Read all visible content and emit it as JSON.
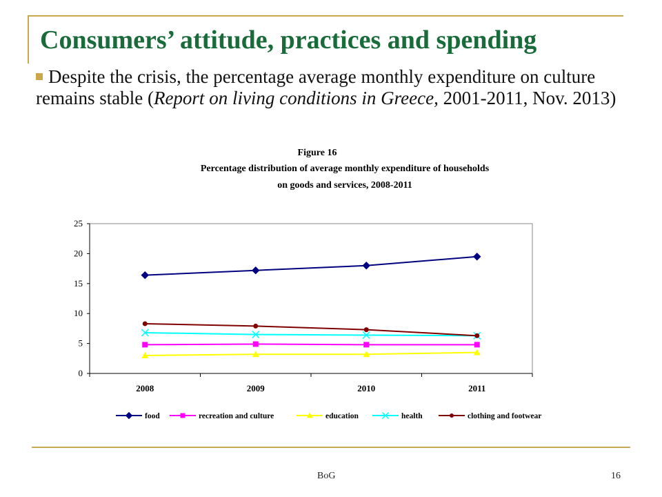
{
  "slide": {
    "title": "Consumers’ attitude, practices and  spending",
    "bullet_main": "Despite the crisis, the percentage average monthly expenditure on culture remains stable (",
    "bullet_italic": "Report on living conditions in Greece,",
    "bullet_tail": " 2001-2011, Nov. 2013)",
    "footer_center": "BoG",
    "page_number": "16"
  },
  "colors": {
    "accent": "#c8a84a",
    "title": "#1a6b3a"
  },
  "chart_data": {
    "type": "line",
    "title": "Figure 16",
    "subtitle_line1": "Percentage distribution of average monthly expenditure of households",
    "subtitle_line2": "on goods and services, 2008-2011",
    "xlabel": "",
    "ylabel": "",
    "categories": [
      "2008",
      "2009",
      "2010",
      "2011"
    ],
    "ylim": [
      0,
      25
    ],
    "yticks": [
      0,
      5,
      10,
      15,
      20,
      25
    ],
    "grid": false,
    "legend": "bottom",
    "series": [
      {
        "name": "food",
        "values": [
          16.4,
          17.2,
          18.0,
          19.5
        ],
        "color": "#000080",
        "marker": "diamond"
      },
      {
        "name": "recreation and culture",
        "values": [
          4.8,
          4.9,
          4.8,
          4.8
        ],
        "color": "#ff00ff",
        "marker": "square"
      },
      {
        "name": "education",
        "values": [
          3.0,
          3.2,
          3.2,
          3.5
        ],
        "color": "#ffff00",
        "marker": "triangle"
      },
      {
        "name": "health",
        "values": [
          6.8,
          6.5,
          6.4,
          6.3
        ],
        "color": "#00ffff",
        "marker": "x"
      },
      {
        "name": "clothing and footwear",
        "values": [
          8.3,
          7.9,
          7.3,
          6.3
        ],
        "color": "#800000",
        "marker": "circle"
      }
    ]
  }
}
